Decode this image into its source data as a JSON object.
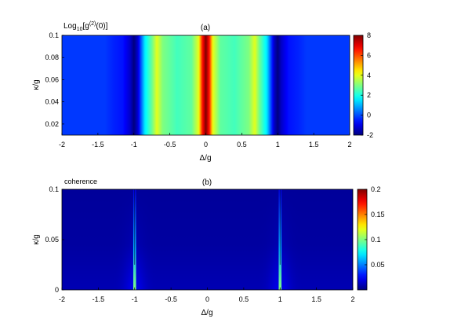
{
  "chart_data": [
    {
      "type": "heatmap",
      "panel_label": "(a)",
      "title": "Log10[g(2)(0)]",
      "title_parts": {
        "base": "Log",
        "sub": "10",
        "mid": "[g",
        "sup": "(2)",
        "end": "(0)]"
      },
      "xlabel": "Δ/g",
      "ylabel": "κ/g",
      "xlim": [
        -2,
        2
      ],
      "ylim": [
        0.01,
        0.1
      ],
      "xticks": [
        -2,
        -1.5,
        -1,
        -0.5,
        0,
        0.5,
        1,
        1.5,
        2
      ],
      "xtick_labels": [
        "-2",
        "-1.5",
        "-1",
        "-0.5",
        "0",
        "0.5",
        "1",
        "1.5",
        "2"
      ],
      "yticks": [
        0.02,
        0.04,
        0.06,
        0.08,
        0.1
      ],
      "ytick_labels": [
        "0.02",
        "0.04",
        "0.06",
        "0.08",
        "0.1"
      ],
      "colormap": "jet",
      "clim": [
        -2,
        8
      ],
      "colorbar_ticks": [
        -2,
        0,
        2,
        4,
        6,
        8
      ],
      "colorbar_tick_labels": [
        "-2",
        "0",
        "2",
        "4",
        "6",
        "8"
      ],
      "profile_delta": [
        -2,
        -1.4,
        -1.3,
        -1.15,
        -1.05,
        -1.0,
        -0.95,
        -0.85,
        -0.75,
        -0.68,
        -0.6,
        -0.4,
        -0.2,
        -0.1,
        -0.05,
        0,
        0.05,
        0.1,
        0.2,
        0.4,
        0.6,
        0.68,
        0.75,
        0.85,
        0.95,
        1.0,
        1.05,
        1.15,
        1.3,
        1.4,
        2
      ],
      "profile_value": [
        -0.2,
        -0.2,
        -0.4,
        -0.6,
        -1.3,
        -2,
        -1.3,
        1.5,
        2.8,
        4.0,
        3.0,
        2.4,
        2.7,
        4.0,
        6.5,
        8,
        6.5,
        4.0,
        2.7,
        2.4,
        3.0,
        4.0,
        2.8,
        1.5,
        -1.3,
        -2,
        -1.3,
        -0.6,
        -0.4,
        -0.2,
        -0.2
      ]
    },
    {
      "type": "heatmap",
      "panel_label": "(b)",
      "title": "coherence",
      "xlabel": "Δ/g",
      "ylabel": "κ/g",
      "xlim": [
        -2,
        2
      ],
      "ylim": [
        0,
        0.1
      ],
      "xticks": [
        -2,
        -1.5,
        -1,
        -0.5,
        0,
        0.5,
        1,
        1.5,
        2
      ],
      "xtick_labels": [
        "-2",
        "-1.5",
        "-1",
        "-0.5",
        "0",
        "0.5",
        "1",
        "1.5",
        "2"
      ],
      "yticks": [
        0,
        0.05,
        0.1
      ],
      "ytick_labels": [
        "0",
        "0.05",
        "0.1"
      ],
      "colormap": "jet",
      "clim": [
        0,
        0.2
      ],
      "colorbar_ticks": [
        0.05,
        0.1,
        0.15,
        0.2
      ],
      "colorbar_tick_labels": [
        "0.05",
        "0.1",
        "0.15",
        "0.2"
      ],
      "background_value": 0.01,
      "peaks": [
        {
          "delta": -1,
          "value_at_kappa_0": 0.1,
          "value_at_kappa_max": 0.02
        },
        {
          "delta": 1,
          "value_at_kappa_0": 0.1,
          "value_at_kappa_max": 0.02
        }
      ]
    }
  ]
}
